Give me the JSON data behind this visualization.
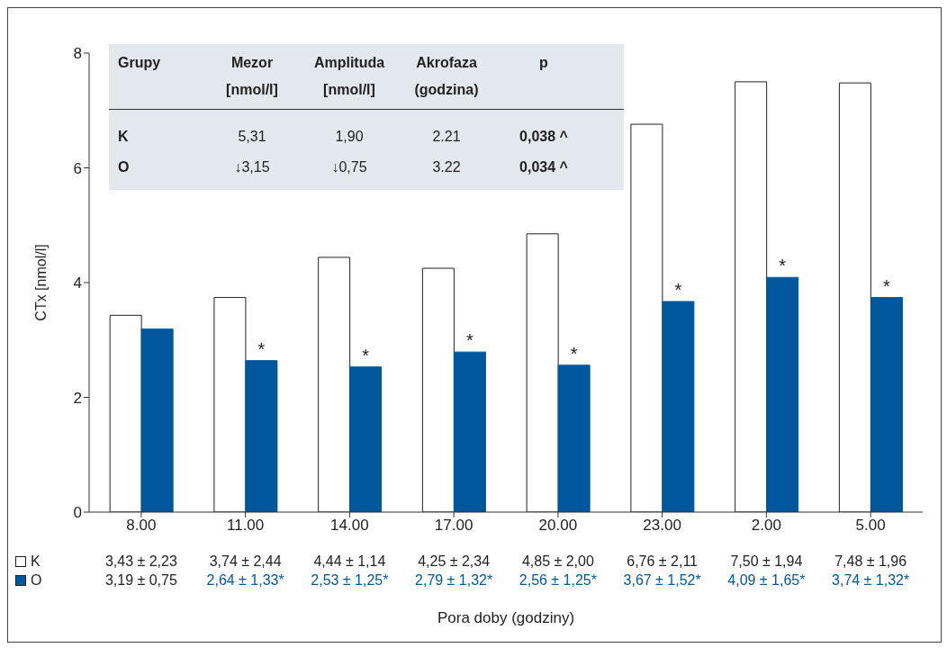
{
  "chart_data": [
    {
      "type": "bar",
      "xlabel": "Pora doby (godziny)",
      "ylabel": "CTx [nmol/l]",
      "categories": [
        "8.00",
        "11.00",
        "14.00",
        "17.00",
        "20.00",
        "23.00",
        "2.00",
        "5.00"
      ],
      "series": [
        {
          "name": "K",
          "color": "#ffffff",
          "values": [
            3.43,
            3.74,
            4.44,
            4.25,
            4.85,
            6.76,
            7.5,
            7.48
          ],
          "value_labels": [
            "3,43 ± 2,23",
            "3,74 ± 2,44",
            "4,44 ± 1,14",
            "4,25 ± 2,34",
            "4,85 ± 2,00",
            "6,76 ± 2,11",
            "7,50 ± 1,94",
            "7,48 ± 1,96"
          ]
        },
        {
          "name": "O",
          "color": "#00579b",
          "values": [
            3.19,
            2.64,
            2.53,
            2.79,
            2.56,
            3.67,
            4.09,
            3.74
          ],
          "value_labels": [
            "3,19 ± 0,75",
            "2,64 ± 1,33*",
            "2,53 ± 1,25*",
            "2,79 ± 1,32*",
            "2,56 ± 1,25*",
            "3,67 ± 1,52*",
            "4,09 ± 1,65*",
            "3,74 ± 1,32*"
          ]
        }
      ],
      "ylim": [
        0,
        8
      ],
      "yticks": [
        0,
        2,
        4,
        6,
        8
      ],
      "legend": "bottom left",
      "annotations": [
        {
          "text": "*",
          "x": "11.00",
          "y": 2.64
        },
        {
          "text": "*",
          "x": "14.00",
          "y": 2.53
        },
        {
          "text": "*",
          "x": "17.00",
          "y": 2.79
        },
        {
          "text": "*",
          "x": "20.00",
          "y": 2.56
        },
        {
          "text": "*",
          "x": "23.00",
          "y": 3.67
        },
        {
          "text": "*",
          "x": "2.00",
          "y": 4.09
        },
        {
          "text": "*",
          "x": "5.00",
          "y": 3.74
        }
      ]
    },
    {
      "type": "other",
      "categories": [
        "Grupy",
        "Mezor [nmol/l]",
        "Amplituda [nmol/l]",
        "Akrofaza (godzina)",
        "p"
      ],
      "annotations": [
        "K",
        "5,31",
        "1,90",
        "2.21",
        "0,038 ^",
        "O",
        "↓3,15",
        "↓0,75",
        "3.22",
        "0,034 ^"
      ]
    }
  ]
}
